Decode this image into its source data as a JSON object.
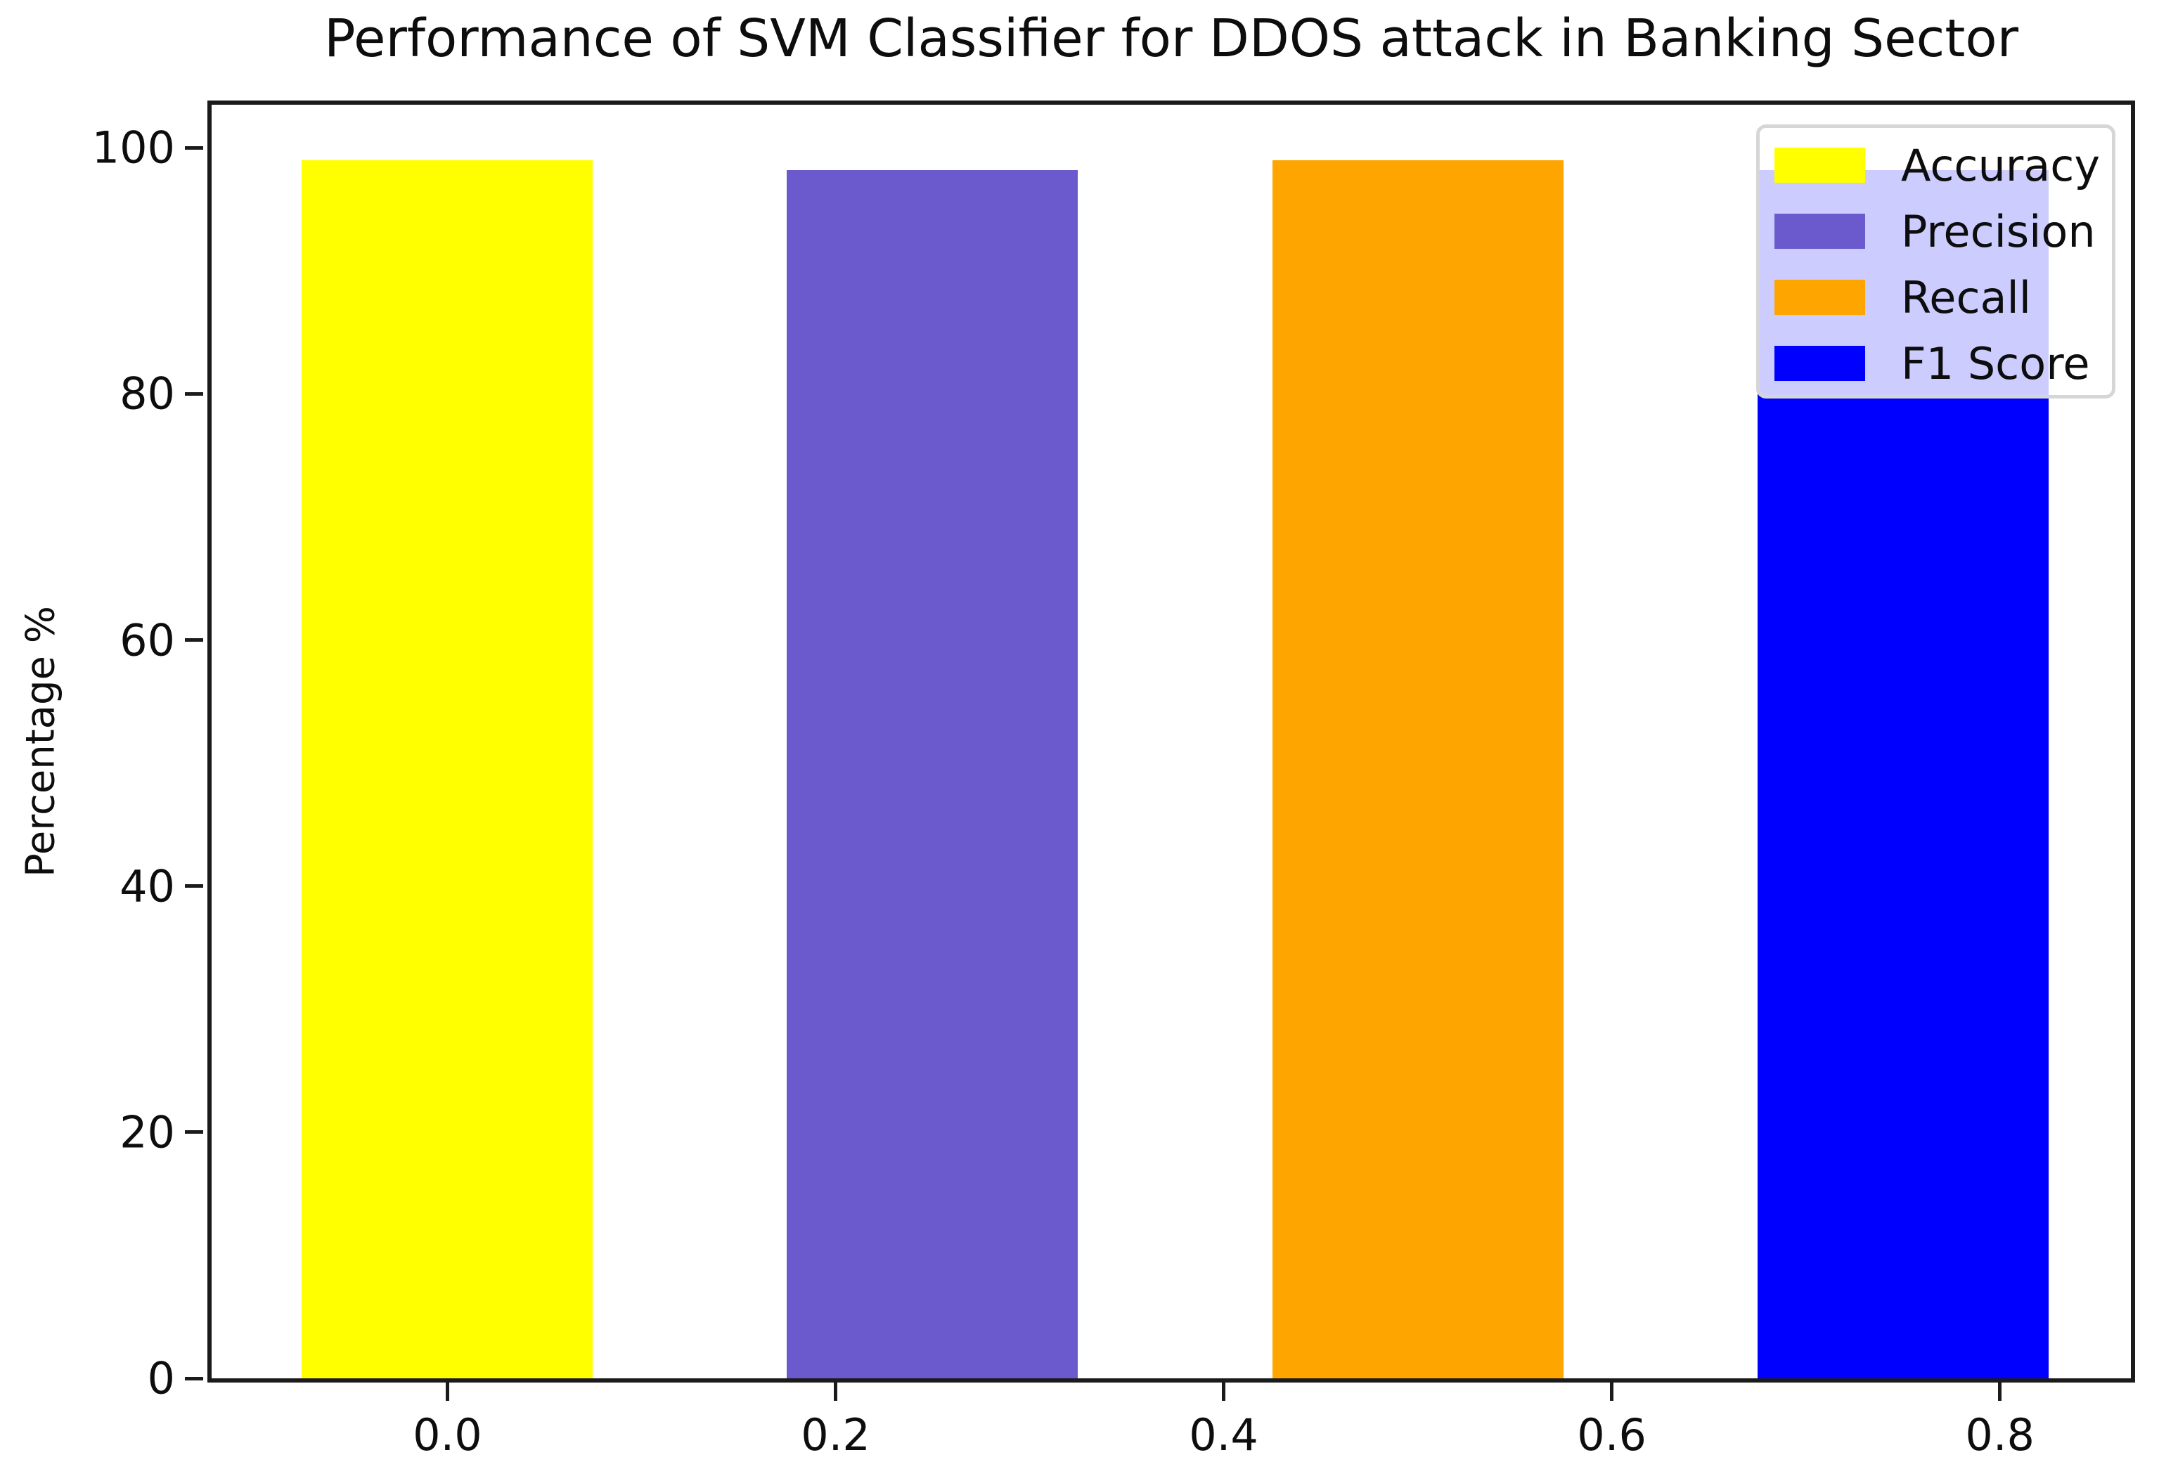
{
  "chart_data": {
    "type": "bar",
    "title": "Performance of SVM Classifier for DDOS attack in Banking Sector",
    "xlabel": "",
    "ylabel": "Percentage %",
    "series": [
      {
        "name": "Accuracy",
        "x": 0.0,
        "value": 99.0,
        "color": "#ffff00"
      },
      {
        "name": "Precision",
        "x": 0.25,
        "value": 98.2,
        "color": "#6a5acd"
      },
      {
        "name": "Recall",
        "x": 0.5,
        "value": 99.0,
        "color": "#ffa500"
      },
      {
        "name": "F1 Score",
        "x": 0.75,
        "value": 98.2,
        "color": "#0000ff"
      }
    ],
    "bar_width": 0.15,
    "xlim": [
      -0.1215,
      0.8675
    ],
    "ylim": [
      0,
      103.5
    ],
    "x_ticks": [
      0.0,
      0.2,
      0.4,
      0.6,
      0.8
    ],
    "x_tick_labels": [
      "0.0",
      "0.2",
      "0.4",
      "0.6",
      "0.8"
    ],
    "y_ticks": [
      0,
      20,
      40,
      60,
      80,
      100
    ],
    "y_tick_labels": [
      "0",
      "20",
      "40",
      "60",
      "80",
      "100"
    ],
    "grid": false,
    "legend_position": "upper-right"
  },
  "colors": {
    "spine": "#1b1b1b",
    "text": "#0d0d0d",
    "legend_border": "#d6d6d6",
    "legend_background": "rgba(255,255,255,0.8)"
  }
}
